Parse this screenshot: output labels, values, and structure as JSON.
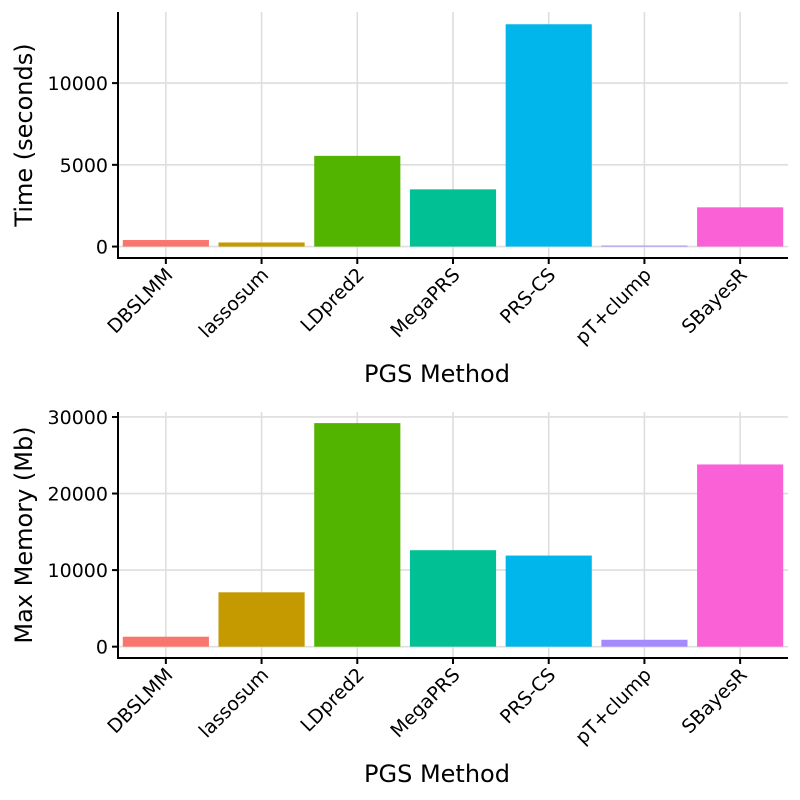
{
  "chart_data": [
    {
      "type": "bar",
      "xlabel": "PGS Method",
      "ylabel": "Time (seconds)",
      "categories": [
        "DBSLMM",
        "lassosum",
        "LDpred2",
        "MegaPRS",
        "PRS-CS",
        "pT+clump",
        "SBayesR"
      ],
      "values": [
        400,
        250,
        5550,
        3500,
        13600,
        60,
        2400
      ],
      "ylim": [
        -700,
        14350
      ],
      "yticks": [
        0,
        5000,
        10000
      ],
      "grid": true,
      "legend": "none"
    },
    {
      "type": "bar",
      "xlabel": "PGS Method",
      "ylabel": "Max Memory (Mb)",
      "categories": [
        "DBSLMM",
        "lassosum",
        "LDpred2",
        "MegaPRS",
        "PRS-CS",
        "pT+clump",
        "SBayesR"
      ],
      "values": [
        1300,
        7100,
        29200,
        12600,
        11900,
        900,
        23800
      ],
      "ylim": [
        -1480,
        30650
      ],
      "yticks": [
        0,
        10000,
        20000,
        30000
      ],
      "grid": true,
      "legend": "none"
    }
  ],
  "colors": {
    "DBSLMM": "#F8766D",
    "lassosum": "#C49A00",
    "LDpred2": "#53B400",
    "MegaPRS": "#00C094",
    "PRS-CS": "#00B6EB",
    "pT+clump": "#A58AFF",
    "SBayesR": "#FB61D7"
  }
}
